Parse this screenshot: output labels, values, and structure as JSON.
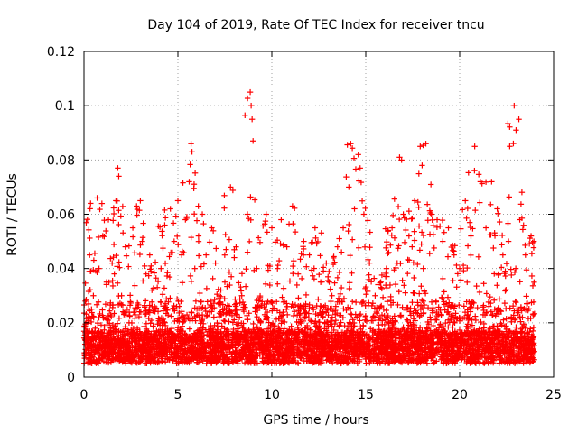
{
  "chart_data": {
    "type": "scatter",
    "title": "Day 104 of 2019, Rate Of TEC Index for receiver tncu",
    "xlabel": "GPS time / hours",
    "ylabel": "ROTI / TECUs",
    "xlim": [
      0,
      25
    ],
    "ylim": [
      0,
      0.12
    ],
    "xticks": [
      0,
      5,
      10,
      15,
      20,
      25
    ],
    "xtick_labels": [
      "0",
      "5",
      "10",
      "15",
      "20",
      "25"
    ],
    "yticks": [
      0,
      0.02,
      0.04,
      0.06,
      0.08,
      0.1,
      0.12
    ],
    "ytick_labels": [
      "0",
      "0.02",
      "0.04",
      "0.06",
      "0.08",
      "0.1",
      "0.12"
    ],
    "grid": true,
    "marker": "plus",
    "color": "#ff0000",
    "series": [
      {
        "points": [
          [
            0.1,
            0.008
          ],
          [
            0.2,
            0.012
          ],
          [
            0.3,
            0.045
          ],
          [
            0.35,
            0.064
          ],
          [
            0.4,
            0.025
          ],
          [
            0.5,
            0.03
          ],
          [
            0.6,
            0.018
          ],
          [
            0.7,
            0.066
          ],
          [
            0.8,
            0.04
          ],
          [
            0.9,
            0.015
          ],
          [
            1.0,
            0.052
          ],
          [
            1.2,
            0.035
          ],
          [
            1.3,
            0.058
          ],
          [
            1.5,
            0.042
          ],
          [
            1.7,
            0.065
          ],
          [
            1.8,
            0.077
          ],
          [
            1.85,
            0.074
          ],
          [
            2.0,
            0.03
          ],
          [
            2.2,
            0.048
          ],
          [
            2.4,
            0.02
          ],
          [
            2.6,
            0.055
          ],
          [
            2.8,
            0.063
          ],
          [
            3.0,
            0.065
          ],
          [
            3.1,
            0.05
          ],
          [
            3.3,
            0.038
          ],
          [
            3.5,
            0.045
          ],
          [
            3.7,
            0.025
          ],
          [
            3.9,
            0.033
          ],
          [
            4.1,
            0.04
          ],
          [
            4.3,
            0.056
          ],
          [
            4.6,
            0.062
          ],
          [
            4.8,
            0.05
          ],
          [
            5.0,
            0.065
          ],
          [
            5.2,
            0.045
          ],
          [
            5.4,
            0.058
          ],
          [
            5.6,
            0.072
          ],
          [
            5.7,
            0.086
          ],
          [
            5.75,
            0.083
          ],
          [
            5.9,
            0.04
          ],
          [
            6.1,
            0.052
          ],
          [
            6.3,
            0.06
          ],
          [
            6.5,
            0.045
          ],
          [
            6.8,
            0.055
          ],
          [
            7.0,
            0.042
          ],
          [
            7.2,
            0.03
          ],
          [
            7.5,
            0.035
          ],
          [
            7.8,
            0.07
          ],
          [
            8.1,
            0.025
          ],
          [
            8.4,
            0.03
          ],
          [
            8.7,
            0.06
          ],
          [
            8.85,
            0.105
          ],
          [
            8.9,
            0.1
          ],
          [
            8.95,
            0.095
          ],
          [
            9.0,
            0.087
          ],
          [
            9.2,
            0.04
          ],
          [
            9.4,
            0.02
          ],
          [
            9.7,
            0.06
          ],
          [
            10.0,
            0.055
          ],
          [
            10.3,
            0.04
          ],
          [
            10.5,
            0.058
          ],
          [
            10.8,
            0.048
          ],
          [
            11.1,
            0.063
          ],
          [
            11.4,
            0.038
          ],
          [
            11.7,
            0.05
          ],
          [
            12.0,
            0.045
          ],
          [
            12.3,
            0.055
          ],
          [
            12.6,
            0.035
          ],
          [
            12.9,
            0.042
          ],
          [
            13.2,
            0.03
          ],
          [
            13.5,
            0.048
          ],
          [
            13.8,
            0.055
          ],
          [
            14.1,
            0.07
          ],
          [
            14.2,
            0.086
          ],
          [
            14.4,
            0.062
          ],
          [
            14.6,
            0.082
          ],
          [
            14.7,
            0.077
          ],
          [
            14.9,
            0.06
          ],
          [
            15.2,
            0.042
          ],
          [
            15.5,
            0.03
          ],
          [
            15.8,
            0.035
          ],
          [
            16.1,
            0.04
          ],
          [
            16.4,
            0.055
          ],
          [
            16.8,
            0.081
          ],
          [
            17.0,
            0.06
          ],
          [
            17.3,
            0.052
          ],
          [
            17.6,
            0.065
          ],
          [
            17.9,
            0.085
          ],
          [
            18.0,
            0.078
          ],
          [
            18.2,
            0.086
          ],
          [
            18.5,
            0.06
          ],
          [
            18.8,
            0.058
          ],
          [
            19.1,
            0.05
          ],
          [
            19.4,
            0.055
          ],
          [
            19.7,
            0.045
          ],
          [
            20.0,
            0.04
          ],
          [
            20.3,
            0.065
          ],
          [
            20.6,
            0.052
          ],
          [
            20.8,
            0.085
          ],
          [
            21.1,
            0.072
          ],
          [
            21.4,
            0.055
          ],
          [
            21.7,
            0.072
          ],
          [
            22.0,
            0.062
          ],
          [
            22.3,
            0.045
          ],
          [
            22.6,
            0.05
          ],
          [
            22.9,
            0.1
          ],
          [
            23.0,
            0.091
          ],
          [
            23.2,
            0.058
          ],
          [
            23.5,
            0.045
          ],
          [
            23.8,
            0.052
          ],
          [
            23.95,
            0.05
          ]
        ]
      }
    ]
  }
}
